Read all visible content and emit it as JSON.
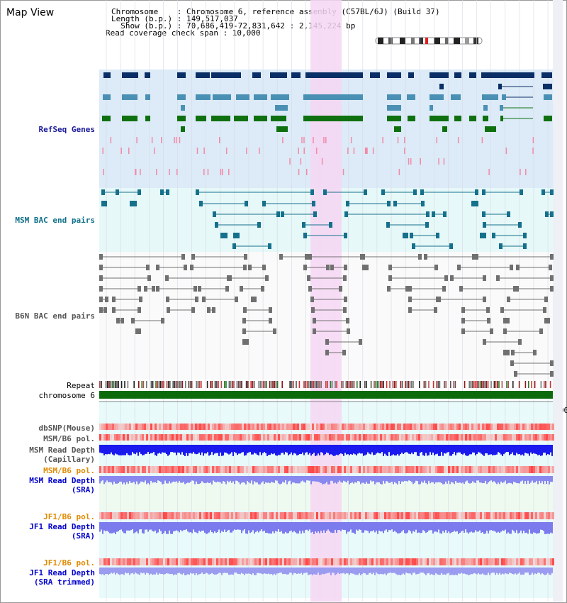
{
  "title": "Map View",
  "header": {
    "line1": "Chromosome    : Chromosome 6, reference assembly (C57BL/6J) (Build 37)",
    "line2": "Length (b.p.) : 149,517,037",
    "line3": "  Show (b.p.) : 70,686,419-72,831,642 : 2,145,224 bp",
    "line4": "Read coverage check span : 10,000"
  },
  "tracks": {
    "refseq": "RefSeq Genes",
    "msm_bac": "MSM BAC end pairs",
    "b6n_bac": "B6N BAC end pairs",
    "repeat": "Repeat",
    "chromosome": "chromosome 6",
    "dbsnp": "dbSNP(Mouse)",
    "msm_b6_pol": "MSM/B6 pol.",
    "msm_read_depth": "MSM Read Depth",
    "msm_read_depth_sub": "(Capillary)",
    "msm_b6_pol_sra": "MSM/B6 pol.",
    "msm_read_depth_sra": "MSM Read Depth",
    "msm_read_depth_sra_sub": "(SRA)",
    "jf1_b6_pol": "JF1/B6 pol.",
    "jf1_read_depth": "JF1 Read Depth",
    "jf1_read_depth_sub": "(SRA)",
    "jf1_b6_pol_trim": "JF1/B6 pol.",
    "jf1_read_depth_trim": "JF1 Read Depth",
    "jf1_read_depth_trim_sub": "(SRA trimmed)"
  },
  "axis_ticks": [
    "70800000",
    "71200000",
    "71600000",
    "72000000",
    "72400000",
    "72800"
  ],
  "colors": {
    "highlight": "#f6d6f3",
    "refseq_bg": "#dcebf7",
    "navy": "#0a2e66",
    "steel": "#4a90b5",
    "green": "#0f7010",
    "teal": "#15708c",
    "gray": "#707070",
    "depth_blue": "#1a1aee",
    "depth_light": "#7b7bee"
  }
}
